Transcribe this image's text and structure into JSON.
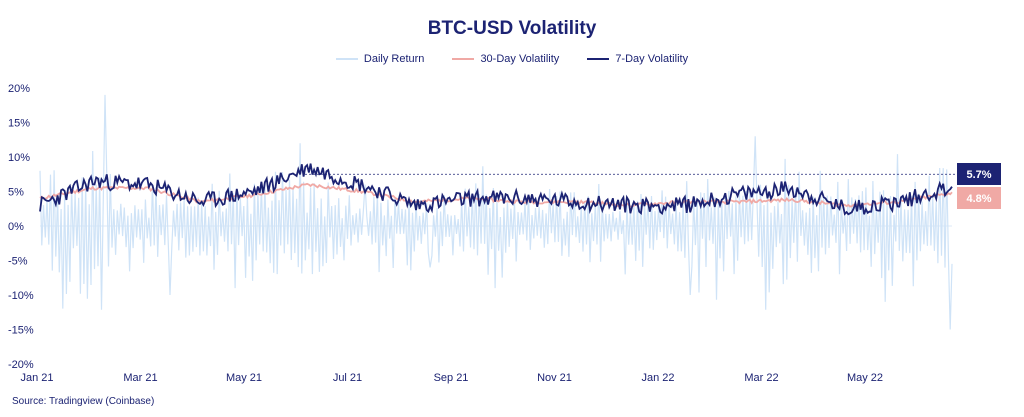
{
  "chart_data": {
    "type": "line",
    "title": "BTC-USD Volatility",
    "source": "Source: Tradingview (Coinbase)",
    "xlabel": "",
    "ylabel": "",
    "ylim": [
      -20,
      20
    ],
    "y_ticks": [
      "20%",
      "15%",
      "10%",
      "5%",
      "0%",
      "-5%",
      "-10%",
      "-15%",
      "-20%"
    ],
    "x_ticks": [
      "Jan 21",
      "Mar 21",
      "May 21",
      "Jul 21",
      "Sep 21",
      "Nov 21",
      "Jan 22",
      "Mar 22",
      "May 22"
    ],
    "legend_position": "top-center",
    "grid": false,
    "colors": {
      "daily": "#cfe3f7",
      "vol30": "#f0a9a5",
      "vol7": "#1c2373"
    },
    "series": [
      {
        "name": "Daily Return",
        "key": "daily",
        "x": [
          "Jan 21",
          "Jan 21",
          "Feb 21",
          "Feb 21",
          "Mar 21",
          "Mar 21",
          "Apr 21",
          "Apr 21",
          "May 21",
          "May 21",
          "Jun 21",
          "Jun 21",
          "Jul 21",
          "Jul 21",
          "Aug 21",
          "Aug 21",
          "Sep 21",
          "Sep 21",
          "Oct 21",
          "Oct 21",
          "Nov 21",
          "Nov 21",
          "Dec 21",
          "Dec 21",
          "Jan 22",
          "Jan 22",
          "Feb 22",
          "Feb 22",
          "Mar 22",
          "Mar 22",
          "Apr 22",
          "Apr 22",
          "May 22",
          "May 22",
          "Jun 22",
          "Jun 22"
        ],
        "values": [
          8,
          -13,
          19,
          -8,
          6,
          -10,
          7,
          -9,
          8,
          -14,
          12,
          -9,
          6,
          -8,
          7,
          -6,
          6,
          -9,
          7,
          -6,
          5,
          -8,
          4,
          -7,
          5,
          -10,
          11,
          -8,
          13,
          -9,
          8,
          -7,
          7,
          -11,
          7,
          -15
        ]
      },
      {
        "name": "30-Day Volatility",
        "key": "vol30",
        "x": [
          "Jan 21",
          "Feb 21",
          "Mar 21",
          "Apr 21",
          "May 21",
          "Jun 21",
          "Jul 21",
          "Aug 21",
          "Sep 21",
          "Oct 21",
          "Nov 21",
          "Dec 21",
          "Jan 22",
          "Feb 22",
          "Mar 22",
          "Apr 22",
          "May 22",
          "Jun 22"
        ],
        "values": [
          4.0,
          5.5,
          5.5,
          3.5,
          4.5,
          6.0,
          5.0,
          3.5,
          4.0,
          3.5,
          3.5,
          3.0,
          3.5,
          3.5,
          3.8,
          3.0,
          3.5,
          4.8
        ]
      },
      {
        "name": "7-Day Volatility",
        "key": "vol7",
        "x": [
          "Jan 21",
          "Feb 21",
          "Mar 21",
          "Apr 21",
          "May 21",
          "Jun 21",
          "Jul 21",
          "Aug 21",
          "Sep 21",
          "Oct 21",
          "Nov 21",
          "Dec 21",
          "Jan 22",
          "Feb 22",
          "Mar 22",
          "Apr 22",
          "May 22",
          "Jun 22"
        ],
        "values": [
          3.0,
          6.5,
          6.0,
          3.5,
          5.0,
          8.5,
          6.0,
          3.0,
          4.0,
          4.0,
          3.5,
          3.0,
          3.0,
          4.5,
          5.5,
          2.5,
          3.5,
          5.7
        ]
      }
    ],
    "reference_line": {
      "value": 7.5
    },
    "badges": [
      {
        "label": "5.7%",
        "series": "vol7",
        "value": 5.7
      },
      {
        "label": "4.8%",
        "series": "vol30",
        "value": 4.8
      }
    ]
  }
}
